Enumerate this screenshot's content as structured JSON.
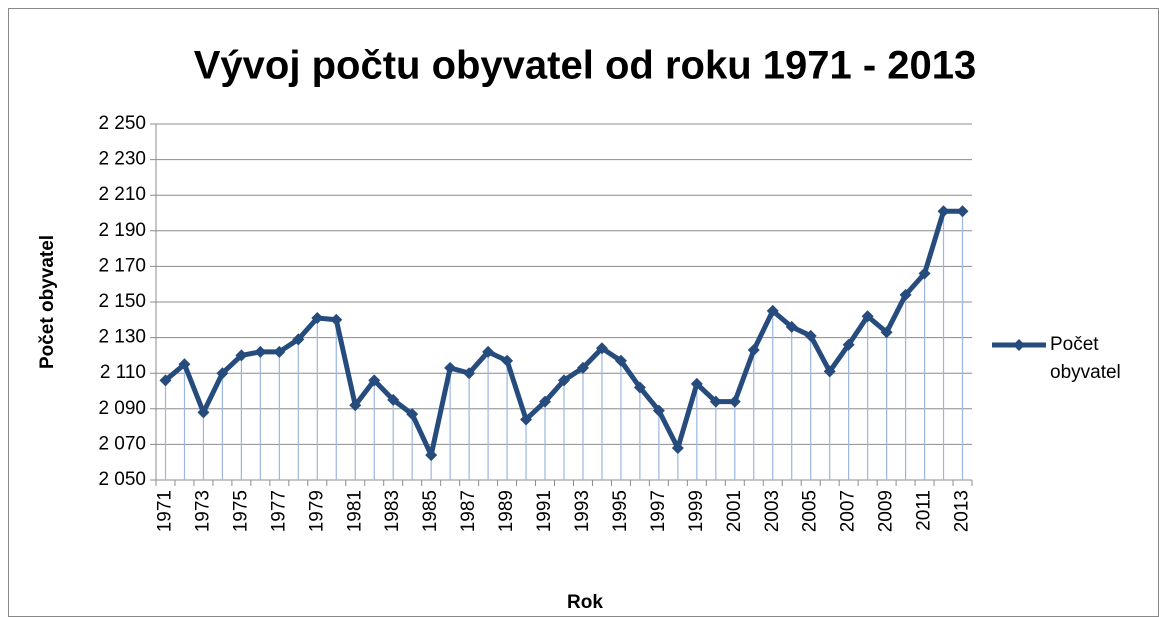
{
  "chart_data": {
    "type": "line",
    "title": "Vývoj počtu obyvatel od roku 1971 - 2013",
    "x_label": "Rok",
    "y_label": "Počet obyvatel",
    "categories": [
      "1971",
      null,
      "1973",
      null,
      "1975",
      null,
      "1977",
      null,
      "1979",
      null,
      "1981",
      null,
      "1983",
      null,
      "1985",
      null,
      "1987",
      null,
      "1989",
      null,
      "1991",
      null,
      "1993",
      null,
      "1995",
      null,
      "1997",
      null,
      "1999",
      null,
      "2001",
      null,
      "2003",
      null,
      "2005",
      null,
      "2007",
      null,
      "2009",
      null,
      "2011",
      null,
      "2013"
    ],
    "series": [
      {
        "name": "Počet obyvatel",
        "color": "#264b7d",
        "values": [
          2106,
          2115,
          2088,
          2110,
          2120,
          2122,
          2122,
          2129,
          2141,
          2140,
          2092,
          2106,
          2095,
          2087,
          2064,
          2113,
          2110,
          2122,
          2117,
          2084,
          2094,
          2106,
          2113,
          2124,
          2117,
          2102,
          2089,
          2068,
          2104,
          2094,
          2094,
          2123,
          2145,
          2136,
          2131,
          2111,
          2126,
          2142,
          2133,
          2154,
          2166,
          2201,
          2201
        ]
      }
    ],
    "ylim": [
      2050,
      2250
    ],
    "yticks": [
      {
        "value": 2050,
        "label": "2 050"
      },
      {
        "value": 2070,
        "label": "2 070"
      },
      {
        "value": 2090,
        "label": "2 090"
      },
      {
        "value": 2110,
        "label": "2 110"
      },
      {
        "value": 2130,
        "label": "2 130"
      },
      {
        "value": 2150,
        "label": "2 150"
      },
      {
        "value": 2170,
        "label": "2 170"
      },
      {
        "value": 2190,
        "label": "2 190"
      },
      {
        "value": 2210,
        "label": "2 210"
      },
      {
        "value": 2230,
        "label": "2 230"
      },
      {
        "value": 2250,
        "label": "2 250"
      }
    ],
    "grid": true,
    "drop_lines": true,
    "legend": "right"
  }
}
